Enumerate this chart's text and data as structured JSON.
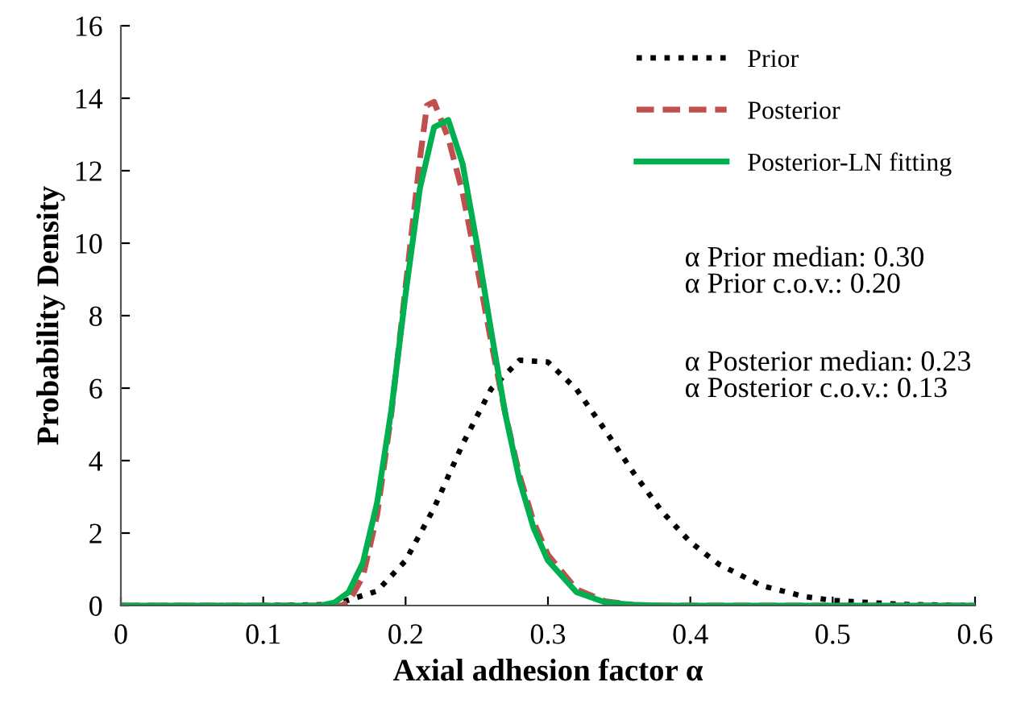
{
  "chart_data": {
    "type": "line",
    "xlabel": "Axial adhesion factor α",
    "ylabel": "Probability Density",
    "xlim": [
      0,
      0.6
    ],
    "xticks": [
      0,
      0.1,
      0.2,
      0.3,
      0.4,
      0.5,
      0.6
    ],
    "ylim": [
      0,
      16
    ],
    "yticks": [
      0,
      2,
      4,
      6,
      8,
      10,
      12,
      14,
      16
    ],
    "grid": false,
    "legend": "top right",
    "marker": "none",
    "series": [
      {
        "name": "Prior",
        "color": "#000000",
        "line_style": "dotted",
        "x": [
          0,
          0.1,
          0.15,
          0.18,
          0.2,
          0.22,
          0.24,
          0.26,
          0.28,
          0.3,
          0.32,
          0.34,
          0.36,
          0.38,
          0.4,
          0.42,
          0.45,
          0.48,
          0.5,
          0.55,
          0.6
        ],
        "values": [
          0,
          0,
          0.03,
          0.4,
          1.24,
          2.69,
          4.45,
          5.97,
          6.77,
          6.72,
          5.97,
          4.85,
          3.67,
          2.6,
          1.75,
          1.14,
          0.55,
          0.25,
          0.14,
          0.03,
          0
        ]
      },
      {
        "name": "Posterior",
        "color": "#c0504d",
        "line_style": "dashed",
        "x": [
          0,
          0.1,
          0.155,
          0.16,
          0.17,
          0.18,
          0.19,
          0.2,
          0.21,
          0.215,
          0.22,
          0.23,
          0.24,
          0.25,
          0.26,
          0.27,
          0.28,
          0.29,
          0.3,
          0.32,
          0.34,
          0.36,
          0.38,
          0.6
        ],
        "values": [
          0,
          0,
          0,
          0.1,
          0.8,
          2.5,
          5.3,
          8.8,
          12.3,
          13.8,
          13.9,
          12.9,
          11.4,
          9.4,
          7.3,
          5.3,
          3.6,
          2.3,
          1.4,
          0.45,
          0.12,
          0.02,
          0,
          0
        ]
      },
      {
        "name": "Posterior-LN fitting",
        "color": "#00b050",
        "line_style": "solid",
        "x": [
          0,
          0.1,
          0.14,
          0.15,
          0.16,
          0.17,
          0.18,
          0.19,
          0.2,
          0.21,
          0.22,
          0.23,
          0.24,
          0.25,
          0.26,
          0.27,
          0.28,
          0.29,
          0.3,
          0.32,
          0.34,
          0.36,
          0.38,
          0.6
        ],
        "values": [
          0,
          0,
          0,
          0.08,
          0.37,
          1.18,
          2.84,
          5.4,
          8.6,
          11.5,
          13.2,
          13.4,
          12.2,
          10.0,
          7.6,
          5.3,
          3.46,
          2.13,
          1.24,
          0.37,
          0.09,
          0.02,
          0,
          0
        ]
      }
    ],
    "annotations": [
      "α Prior median: 0.30\nα Prior c.o.v.: 0.20",
      "α Posterior median: 0.23\nα Posterior c.o.v.: 0.13"
    ]
  }
}
